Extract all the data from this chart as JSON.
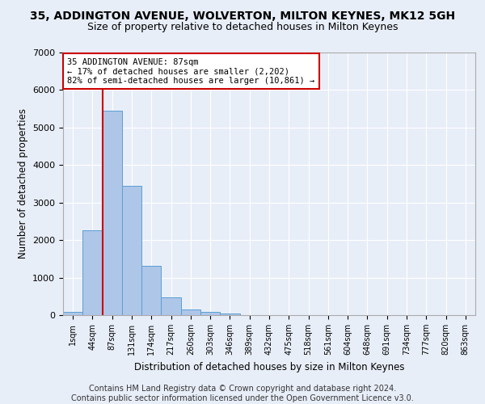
{
  "title1": "35, ADDINGTON AVENUE, WOLVERTON, MILTON KEYNES, MK12 5GH",
  "title2": "Size of property relative to detached houses in Milton Keynes",
  "xlabel": "Distribution of detached houses by size in Milton Keynes",
  "ylabel": "Number of detached properties",
  "categories": [
    "1sqm",
    "44sqm",
    "87sqm",
    "131sqm",
    "174sqm",
    "217sqm",
    "260sqm",
    "303sqm",
    "346sqm",
    "389sqm",
    "432sqm",
    "475sqm",
    "518sqm",
    "561sqm",
    "604sqm",
    "648sqm",
    "691sqm",
    "734sqm",
    "777sqm",
    "820sqm",
    "863sqm"
  ],
  "values": [
    80,
    2260,
    5460,
    3450,
    1320,
    470,
    160,
    80,
    45,
    0,
    0,
    0,
    0,
    0,
    0,
    0,
    0,
    0,
    0,
    0,
    0
  ],
  "bar_color": "#aec6e8",
  "bar_edge_color": "#5a9fd4",
  "vline_index": 2,
  "vline_color": "#cc0000",
  "annotation_text": "35 ADDINGTON AVENUE: 87sqm\n← 17% of detached houses are smaller (2,202)\n82% of semi-detached houses are larger (10,861) →",
  "annotation_box_color": "#ffffff",
  "annotation_box_edge_color": "#cc0000",
  "ylim": [
    0,
    7000
  ],
  "yticks": [
    0,
    1000,
    2000,
    3000,
    4000,
    5000,
    6000,
    7000
  ],
  "bg_color": "#e8eef8",
  "grid_color": "#ffffff",
  "title1_fontsize": 10,
  "title2_fontsize": 9,
  "footer_text": "Contains HM Land Registry data © Crown copyright and database right 2024.\nContains public sector information licensed under the Open Government Licence v3.0.",
  "footer_fontsize": 7
}
